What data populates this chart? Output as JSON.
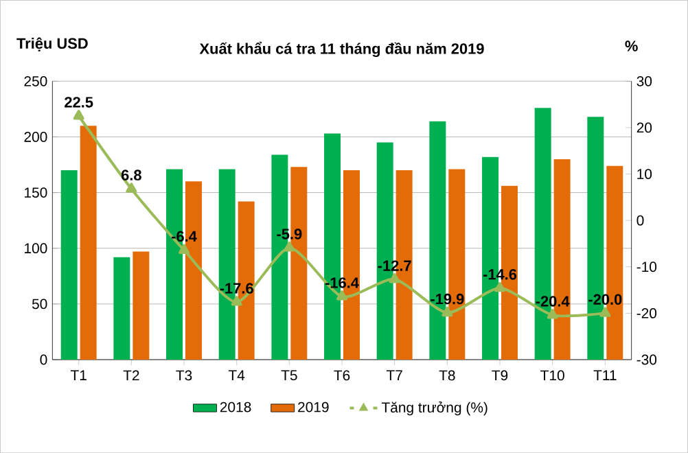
{
  "chart_data": {
    "type": "bar",
    "title": "Xuất khẩu cá tra 11 tháng đầu năm 2019",
    "ylabel": "Triệu USD",
    "y2label": "%",
    "categories": [
      "T1",
      "T2",
      "T3",
      "T4",
      "T5",
      "T6",
      "T7",
      "T8",
      "T9",
      "T10",
      "T11"
    ],
    "series": [
      {
        "name": "2018",
        "color": "#00b050",
        "values": [
          170,
          92,
          171,
          171,
          184,
          203,
          195,
          214,
          182,
          226,
          218
        ]
      },
      {
        "name": "2019",
        "color": "#e36c09",
        "values": [
          210,
          97,
          160,
          142,
          173,
          170,
          170,
          171,
          156,
          180,
          174
        ]
      },
      {
        "name": "Tăng trưởng (%)",
        "type": "line",
        "axis": "y2",
        "color": "#9bbb59",
        "marker": "triangle",
        "data_labels": true,
        "values": [
          22.5,
          6.8,
          -6.4,
          -17.6,
          -5.9,
          -16.4,
          -12.7,
          -19.9,
          -14.6,
          -20.4,
          -20.0
        ],
        "value_labels": [
          "22.5",
          "6.8",
          "-6.4",
          "-17.6",
          "-5.9",
          "-16.4",
          "-12.7",
          "-19.9",
          "-14.6",
          "-20.4",
          "-20.0"
        ]
      }
    ],
    "ylim": [
      0,
      250
    ],
    "yticks": [
      0,
      50,
      100,
      150,
      200,
      250
    ],
    "y2lim": [
      -30,
      30
    ],
    "y2ticks": [
      -30,
      -20,
      -10,
      0,
      10,
      20,
      30
    ],
    "grid": "y",
    "legend": "bottom"
  }
}
